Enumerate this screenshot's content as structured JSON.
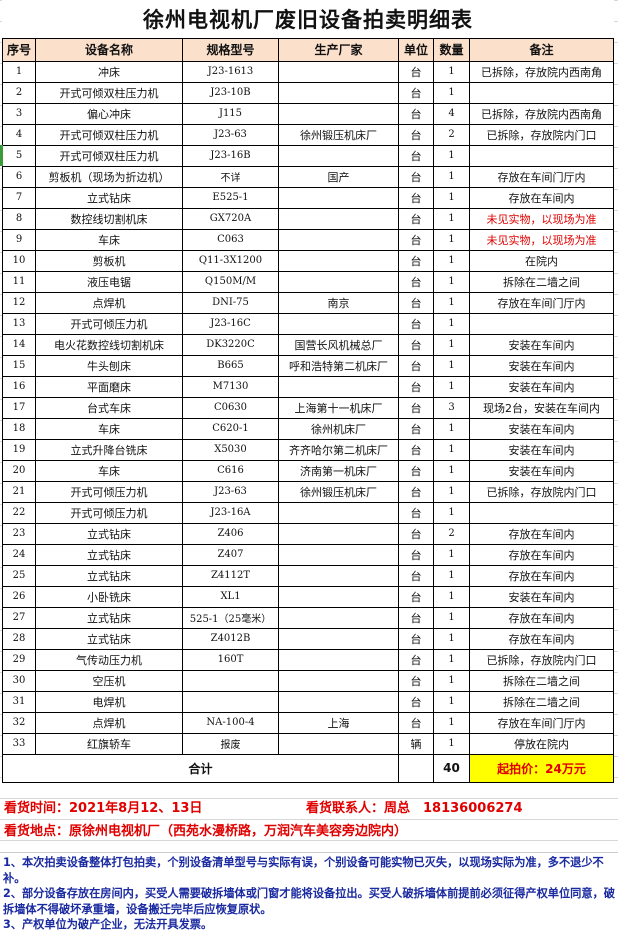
{
  "title": "徐州电视机厂废旧设备拍卖明细表",
  "headers": [
    "序号",
    "设备名称",
    "规格型号",
    "生产厂家",
    "单位",
    "数量",
    "备注"
  ],
  "rows": [
    [
      "1",
      "冲床",
      "J23-1613",
      "",
      "台",
      "1",
      "已拆除，存放院内西南角"
    ],
    [
      "2",
      "开式可倾双柱压力机",
      "J23-10B",
      "",
      "台",
      "1",
      ""
    ],
    [
      "3",
      "偏心冲床",
      "J115",
      "",
      "台",
      "4",
      "已拆除，存放院内西南角"
    ],
    [
      "4",
      "开式可倾双柱压力机",
      "J23-63",
      "徐州锻压机床厂",
      "台",
      "2",
      "已拆除，存放院内门口"
    ],
    [
      "5",
      "开式可倾双柱压力机",
      "J23-16B",
      "",
      "台",
      "1",
      ""
    ],
    [
      "6",
      "剪板机（现场为折边机）",
      "不详",
      "国产",
      "台",
      "1",
      "存放在车间门厅内"
    ],
    [
      "7",
      "立式钻床",
      "E525-1",
      "",
      "台",
      "1",
      "存放在车间内"
    ],
    [
      "8",
      "数控线切割机床",
      "GX720A",
      "",
      "台",
      "1",
      "未见实物，以现场为准"
    ],
    [
      "9",
      "车床",
      "C063",
      "",
      "台",
      "1",
      "未见实物，以现场为准"
    ],
    [
      "10",
      "剪板机",
      "Q11-3X1200",
      "",
      "台",
      "1",
      "在院内"
    ],
    [
      "11",
      "液压电锯",
      "Q150M/M",
      "",
      "台",
      "1",
      "拆除在二墙之间"
    ],
    [
      "12",
      "点焊机",
      "DNI-75",
      "南京",
      "台",
      "1",
      "存放在车间门厅内"
    ],
    [
      "13",
      "开式可倾压力机",
      "J23-16C",
      "",
      "台",
      "1",
      ""
    ],
    [
      "14",
      "电火花数控线切割机床",
      "DK3220C",
      "国营长风机械总厂",
      "台",
      "1",
      "安装在车间内"
    ],
    [
      "15",
      "牛头刨床",
      "B665",
      "呼和浩特第二机床厂",
      "台",
      "1",
      "安装在车间内"
    ],
    [
      "16",
      "平面磨床",
      "M7130",
      "",
      "台",
      "1",
      "安装在车间内"
    ],
    [
      "17",
      "台式车床",
      "C0630",
      "上海第十一机床厂",
      "台",
      "3",
      "现场2台，安装在车间内"
    ],
    [
      "18",
      "车床",
      "C620-1",
      "徐州机床厂",
      "台",
      "1",
      "安装在车间内"
    ],
    [
      "19",
      "立式升降台铣床",
      "X5030",
      "齐齐哈尔第二机床厂",
      "台",
      "1",
      "安装在车间内"
    ],
    [
      "20",
      "车床",
      "C616",
      "济南第一机床厂",
      "台",
      "1",
      "安装在车间内"
    ],
    [
      "21",
      "开式可倾压力机",
      "J23-63",
      "徐州锻压机床厂",
      "台",
      "1",
      "已拆除，存放院内门口"
    ],
    [
      "22",
      "开式可倾压力机",
      "J23-16A",
      "",
      "台",
      "1",
      ""
    ],
    [
      "23",
      "立式钻床",
      "Z406",
      "",
      "台",
      "2",
      "存放在车间内"
    ],
    [
      "24",
      "立式钻床",
      "Z407",
      "",
      "台",
      "1",
      "存放在车间内"
    ],
    [
      "25",
      "立式钻床",
      "Z4112T",
      "",
      "台",
      "1",
      "存放在车间内"
    ],
    [
      "26",
      "小卧铣床",
      "XL1",
      "",
      "台",
      "1",
      "安装在车间内"
    ],
    [
      "27",
      "立式钻床",
      "525-1（25毫米）",
      "",
      "台",
      "1",
      "存放在车间内"
    ],
    [
      "28",
      "立式钻床",
      "Z4012B",
      "",
      "台",
      "1",
      "存放在车间内"
    ],
    [
      "29",
      "气传动压力机",
      "160T",
      "",
      "台",
      "1",
      "已拆除，存放院内门口"
    ],
    [
      "30",
      "空压机",
      "",
      "",
      "台",
      "1",
      "拆除在二墙之间"
    ],
    [
      "31",
      "电焊机",
      "",
      "",
      "台",
      "1",
      "拆除在二墙之间"
    ],
    [
      "32",
      "点焊机",
      "NA-100-4",
      "上海",
      "台",
      "1",
      "存放在车间门厅内"
    ],
    [
      "33",
      "红旗轿车",
      "报废",
      "",
      "辆",
      "1",
      "停放在院内"
    ]
  ],
  "red_rows": [
    8,
    9
  ],
  "total": {
    "label": "合计",
    "quantity": "40",
    "price": "起拍价：24万元"
  },
  "info": {
    "time": "看货时间：2021年8月12、13日",
    "contact": "看货联系人：周总　18136006274",
    "location": "看货地点：原徐州电视机厂（西苑水漫桥路，万润汽车美容旁边院内）"
  },
  "notes": [
    "1、本次拍卖设备整体打包拍卖，个别设备清单型号与实际有误，个别设备可能实物已灭失，以现场实际为准，多不退少不补。",
    "2、部分设备存放在房间内，买受人需要破拆墙体或门窗才能将设备拉出。买受人破拆墙体前提前必须征得产权单位同意，破拆墙体不得破坏承重墙，设备搬迁完毕后应恢复原状。",
    "3、产权单位为破产企业，无法开具发票。"
  ],
  "colors": {
    "header_bg": "#fbe0cc",
    "price_bg": "#ffff00",
    "red_text": "#e00000",
    "notes_text": "#1a2aa0"
  }
}
